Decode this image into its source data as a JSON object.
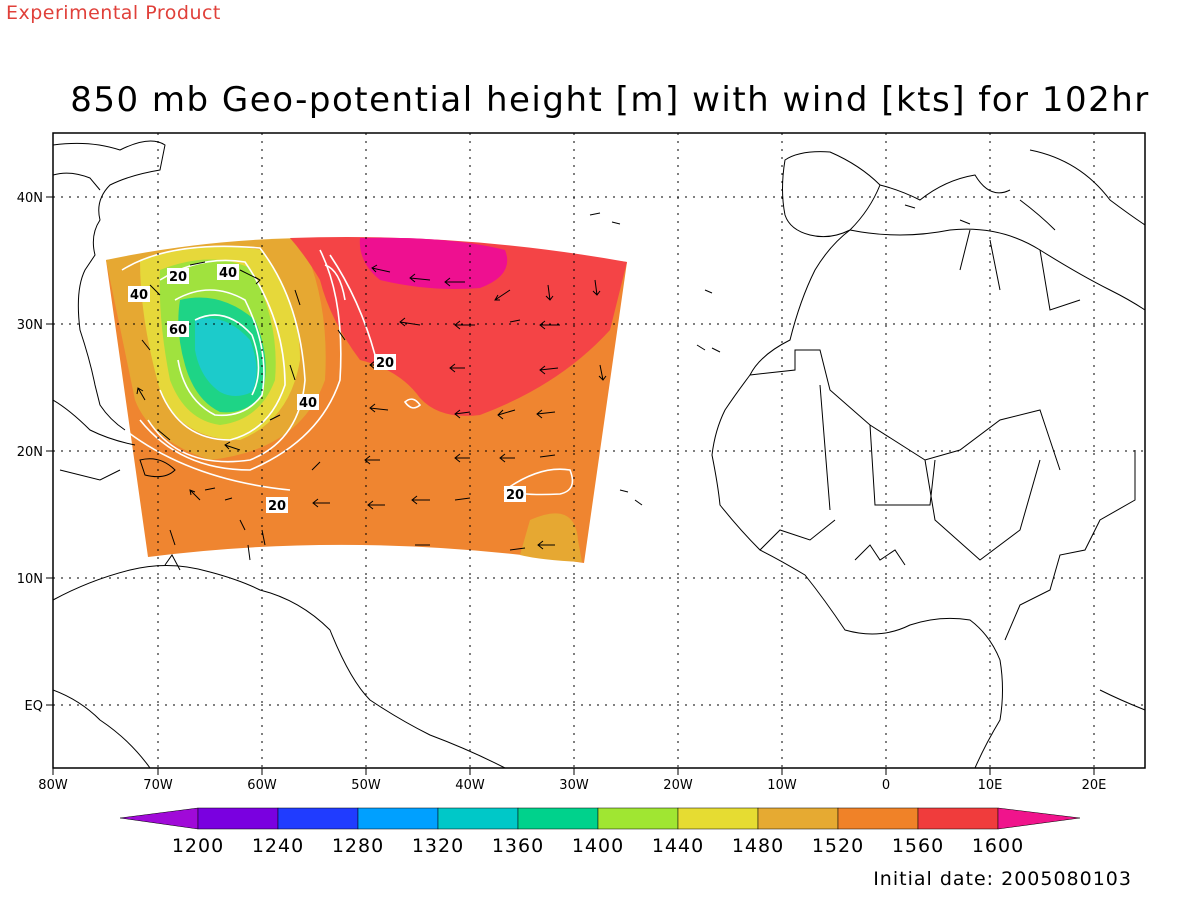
{
  "header": {
    "tag": "Experimental Product",
    "title": "850 mb Geo-potential height [m] with wind [kts] for 102hr"
  },
  "footer": {
    "initial_date": "Initial date: 2005080103"
  },
  "map": {
    "lon_ticks": [
      "80W",
      "70W",
      "60W",
      "50W",
      "40W",
      "30W",
      "20W",
      "10W",
      "0",
      "10E",
      "20E"
    ],
    "lat_ticks": [
      "40N",
      "30N",
      "20N",
      "10N",
      "EQ"
    ],
    "contour_labels": [
      "20",
      "40",
      "40",
      "60",
      "20",
      "40",
      "20",
      "20"
    ],
    "height_field_colors": {
      "1480": "#e6d83a",
      "1520": "#e6a832",
      "1560": "#ef8530",
      "1600": "#f44446",
      "1600+": "#ee1090",
      "1440": "#a0e23e",
      "1400": "#1ed486",
      "1360": "#1ccbcb"
    }
  },
  "colorbar": {
    "labels": [
      "1200",
      "1240",
      "1280",
      "1320",
      "1360",
      "1400",
      "1440",
      "1480",
      "1520",
      "1560",
      "1600"
    ],
    "colors": [
      "#a00ad8",
      "#7a00e0",
      "#203cff",
      "#00a0ff",
      "#00c8c8",
      "#00d28c",
      "#a0e632",
      "#e6dc32",
      "#e6aa32",
      "#f08228",
      "#f03c3c",
      "#f0148c"
    ]
  }
}
